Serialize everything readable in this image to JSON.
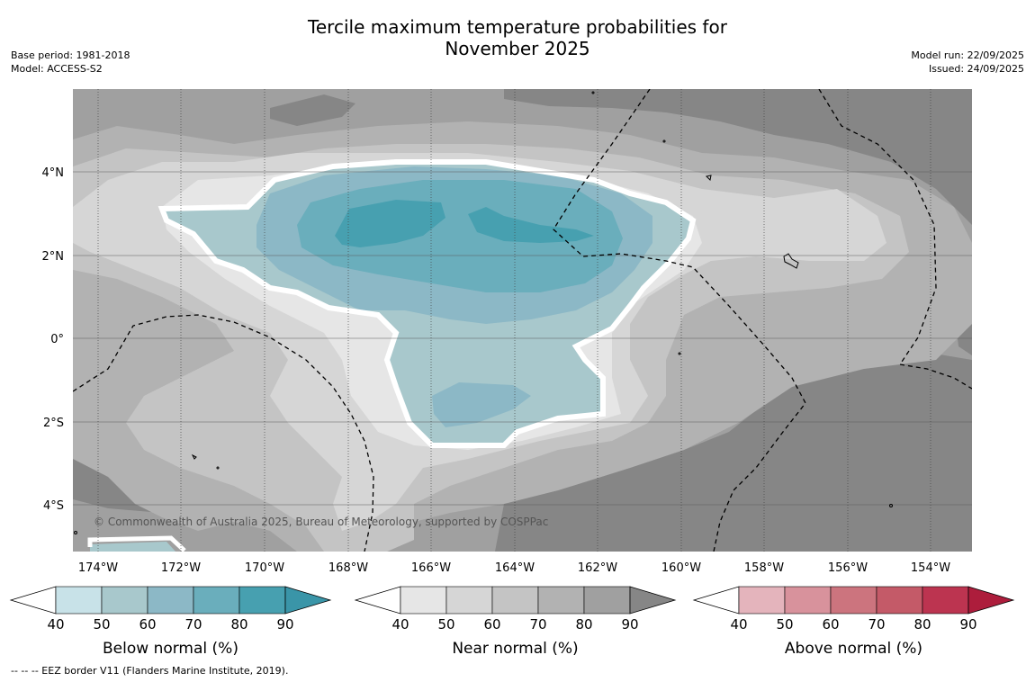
{
  "header": {
    "title_line1": "Tercile maximum temperature probabilities for",
    "title_line2": "November 2025",
    "base_period": "Base period: 1981-2018",
    "model": "Model: ACCESS-S2",
    "model_run": "Model run: 22/09/2025",
    "issued": "Issued: 24/09/2025"
  },
  "map": {
    "copyright": "© Commonwealth of Australia 2025, Bureau of Meteorology, supported by COSPPac",
    "lat_labels": [
      "4°N",
      "2°N",
      "0°",
      "2°S",
      "4°S"
    ],
    "lon_labels": [
      "174°W",
      "172°W",
      "170°W",
      "168°W",
      "166°W",
      "164°W",
      "162°W",
      "160°W",
      "158°W",
      "156°W",
      "154°W"
    ],
    "colors": {
      "ocean_base": "#a0a0a0",
      "near_40": "#e6e6e6",
      "near_50": "#d6d6d6",
      "near_60": "#c4c4c4",
      "near_70": "#b2b2b2",
      "near_80": "#a0a0a0",
      "near_90": "#868686",
      "below_40": "#c8e2e8",
      "below_50": "#a8c8cc",
      "below_60": "#8cb8c6",
      "below_70": "#6aaebc",
      "below_80": "#47a0b0",
      "above_40": "#e4b4bc",
      "above_50": "#d8929c",
      "above_60": "#cc747e",
      "above_70": "#c45a68",
      "above_80": "#bc3450"
    }
  },
  "legends": [
    {
      "title": "Below normal (%)",
      "ticks": [
        "40",
        "50",
        "60",
        "70",
        "80",
        "90"
      ],
      "colors": [
        "#ffffff",
        "#c8e2e8",
        "#a8c8cc",
        "#8cb8c6",
        "#6aaebc",
        "#47a0b0",
        "#3a95a8"
      ]
    },
    {
      "title": "Near normal (%)",
      "ticks": [
        "40",
        "50",
        "60",
        "70",
        "80",
        "90"
      ],
      "colors": [
        "#ffffff",
        "#e6e6e6",
        "#d6d6d6",
        "#c4c4c4",
        "#b2b2b2",
        "#a0a0a0",
        "#868686"
      ]
    },
    {
      "title": "Above normal (%)",
      "ticks": [
        "40",
        "50",
        "60",
        "70",
        "80",
        "90"
      ],
      "colors": [
        "#ffffff",
        "#e4b4bc",
        "#d8929c",
        "#cc747e",
        "#c45a68",
        "#bc3450",
        "#ad1d3c"
      ]
    }
  ],
  "footnote": "--  --  -- EEZ border V11 (Flanders Marine Institute, 2019)."
}
